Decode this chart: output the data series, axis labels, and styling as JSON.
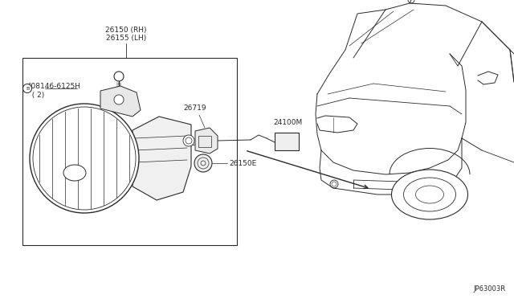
{
  "bg_color": "#ffffff",
  "line_color": "#2a2a2a",
  "text_color": "#2a2a2a",
  "fig_width": 6.4,
  "fig_height": 3.72,
  "dpi": 100,
  "labels": {
    "part_rh_lh": "26150 (RH)\n26155 (LH)",
    "part_screw": "°08146-6125H\n  ( 2)",
    "part_26719": "26719",
    "part_24100M": "24100M",
    "part_26150E": "26150E",
    "diagram_id": "JP63003R"
  }
}
